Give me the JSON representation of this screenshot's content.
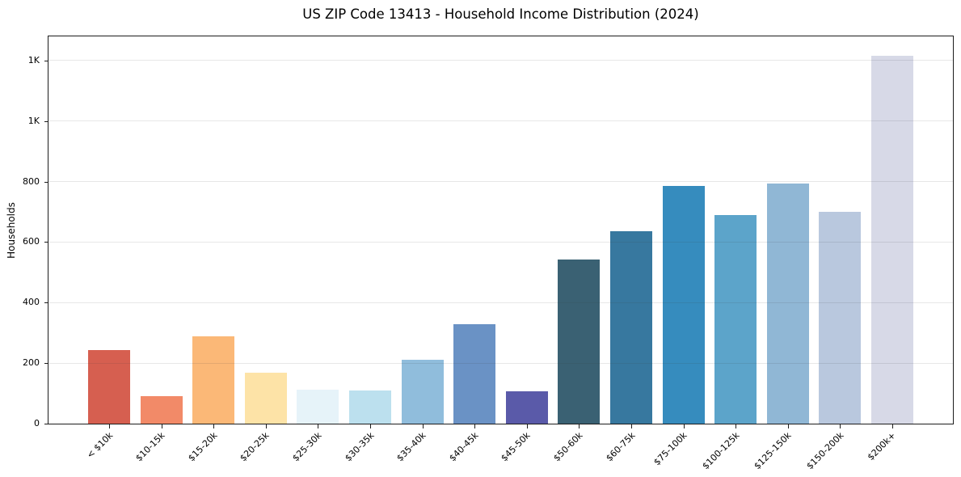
{
  "chart_data": {
    "type": "bar",
    "title": "US ZIP Code 13413 - Household Income Distribution (2024)",
    "xlabel": "",
    "ylabel": "Households",
    "categories": [
      "< $10k",
      "$10-15k",
      "$15-20k",
      "$20-25k",
      "$25-30k",
      "$30-35k",
      "$35-40k",
      "$40-45k",
      "$45-50k",
      "$50-60k",
      "$60-75k",
      "$75-100k",
      "$100-125k",
      "$125-150k",
      "$150-200k",
      "$200k+"
    ],
    "values": [
      243,
      90,
      288,
      168,
      112,
      110,
      210,
      330,
      106,
      543,
      635,
      785,
      690,
      795,
      700,
      1215
    ],
    "bar_colors": [
      "#d65f50",
      "#f28a68",
      "#fbb877",
      "#fde3a7",
      "#e6f3f9",
      "#bce0ee",
      "#90bddc",
      "#6a92c5",
      "#5a5aa9",
      "#3a6173",
      "#37789f",
      "#368cbe",
      "#5ca4ca",
      "#90b7d5",
      "#b9c8de",
      "#d7d9e7"
    ],
    "yticks": [
      {
        "label": "0",
        "value": 0
      },
      {
        "label": "200",
        "value": 200
      },
      {
        "label": "400",
        "value": 400
      },
      {
        "label": "600",
        "value": 600
      },
      {
        "label": "800",
        "value": 800
      },
      {
        "label": "1K",
        "value": 1000
      },
      {
        "label": "1K",
        "value": 1200
      }
    ],
    "ylim": [
      0,
      1280
    ],
    "grid": true,
    "legend_position": "none",
    "axis_color": "#1c1c1c",
    "background_color": "#ffffff"
  }
}
